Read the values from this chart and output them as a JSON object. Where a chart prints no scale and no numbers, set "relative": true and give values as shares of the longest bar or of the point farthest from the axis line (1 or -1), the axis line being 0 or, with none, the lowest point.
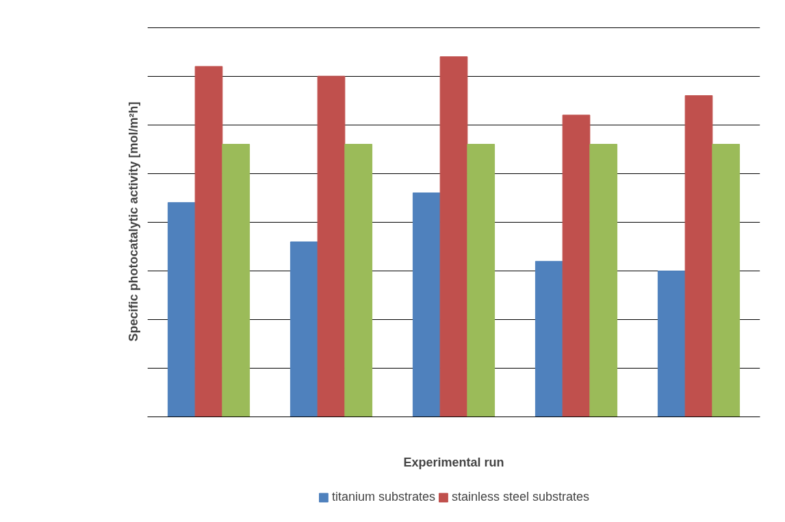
{
  "chart_data": {
    "type": "bar",
    "relative": true,
    "xlabel": "Experimental run",
    "ylabel": "Specific photocatalytic activity [mol/m²h]",
    "categories": [
      null,
      null,
      null,
      null,
      null
    ],
    "series": [
      {
        "name": "titanium substrates",
        "color": "#4f81bd",
        "values": [
          0.595,
          0.486,
          0.622,
          0.432,
          0.405
        ]
      },
      {
        "name": "stainless steel substrates",
        "color": "#c0504d",
        "values": [
          0.973,
          0.946,
          1,
          0.838,
          0.892
        ]
      },
      {
        "color": "#9bbb59",
        "values": [
          0.757,
          0.757,
          0.757,
          0.757,
          0.757
        ]
      }
    ],
    "grid": "y",
    "legend": "bottom"
  }
}
